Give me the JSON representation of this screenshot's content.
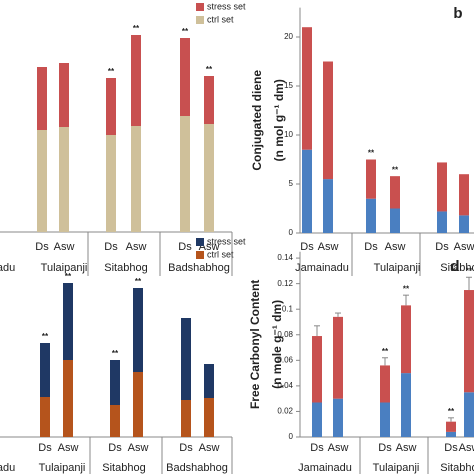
{
  "chart_data": [
    {
      "type": "bar",
      "stacked": true,
      "groups": [
        "adu",
        "Tulaipanji",
        "Sitabhog",
        "Badshabhog"
      ],
      "categories": [
        "Ds",
        "Asw",
        "Ds",
        "Asw",
        "Ds",
        "Asw"
      ],
      "series": [
        {
          "name": "ctrl set",
          "color": "#cfc09a",
          "values": [
            102,
            105,
            97,
            106,
            116,
            108
          ]
        },
        {
          "name": "stress set",
          "color": "#c85050",
          "values": [
            63,
            64,
            57,
            91,
            78,
            48
          ]
        }
      ],
      "annotations": [
        null,
        null,
        "**",
        "**",
        "**",
        "**"
      ],
      "ylim": [
        0,
        200
      ],
      "legend": "upper right"
    },
    {
      "type": "bar",
      "stacked": true,
      "panel_label": "b",
      "ylabel": [
        "Conjugated diene",
        "(n mol g⁻¹ dm)"
      ],
      "groups": [
        "Jamainadu",
        "Tulaipanji",
        "Sitabhog"
      ],
      "categories": [
        "Ds",
        "Asw",
        "Ds",
        "Asw",
        "Ds",
        "Asw"
      ],
      "series": [
        {
          "color": "#4a7fc1",
          "values": [
            8.5,
            5.5,
            3.5,
            2.5,
            2.2,
            1.8
          ]
        },
        {
          "color": "#c9504f",
          "values": [
            12.5,
            12,
            4,
            3.3,
            5,
            4.2
          ]
        }
      ],
      "annotations": [
        null,
        null,
        "**",
        "**",
        null,
        null
      ],
      "ylim": [
        0,
        23
      ],
      "yticks": [
        0,
        5,
        10,
        15,
        20
      ]
    },
    {
      "type": "bar",
      "stacked": true,
      "groups": [
        "adu",
        "Tulaipanji",
        "Sitabhog",
        "Badshabhog"
      ],
      "categories": [
        "Ds",
        "Asw",
        "Ds",
        "Asw",
        "Ds",
        "Asw"
      ],
      "series": [
        {
          "name": "ctrl set",
          "color": "#b5541c",
          "values": [
            40,
            77,
            32,
            65,
            37,
            39
          ]
        },
        {
          "name": "stress set",
          "color": "#1f3864",
          "values": [
            54,
            77,
            45,
            84,
            82,
            34
          ]
        }
      ],
      "annotations": [
        "**",
        "**",
        "**",
        "**",
        null,
        null
      ],
      "ylim": [
        0,
        200
      ],
      "legend": "upper right"
    },
    {
      "type": "bar",
      "stacked": true,
      "panel_label": "d",
      "ylabel": [
        "Free Carbonyl Content",
        "(n mole g⁻¹ dm)"
      ],
      "groups": [
        "Jamainadu",
        "Tulaipanji",
        "Sitabhog"
      ],
      "categories": [
        "Ds",
        "Asw",
        "Ds",
        "Asw",
        "Ds",
        "Asw"
      ],
      "series": [
        {
          "color": "#4a7fc1",
          "values": [
            0.027,
            0.03,
            0.027,
            0.05,
            0.004,
            0.035
          ]
        },
        {
          "color": "#c9504f",
          "values": [
            0.052,
            0.064,
            0.029,
            0.053,
            0.008,
            0.08
          ]
        }
      ],
      "errors": [
        0.008,
        0.003,
        0.006,
        0.008,
        0.003,
        0.01
      ],
      "annotations": [
        null,
        null,
        "**",
        "**",
        "**",
        "**"
      ],
      "ylim": [
        0,
        0.145
      ],
      "yticks": [
        0,
        0.02,
        0.04,
        0.06,
        0.08,
        0.1,
        0.12,
        0.14
      ]
    }
  ]
}
